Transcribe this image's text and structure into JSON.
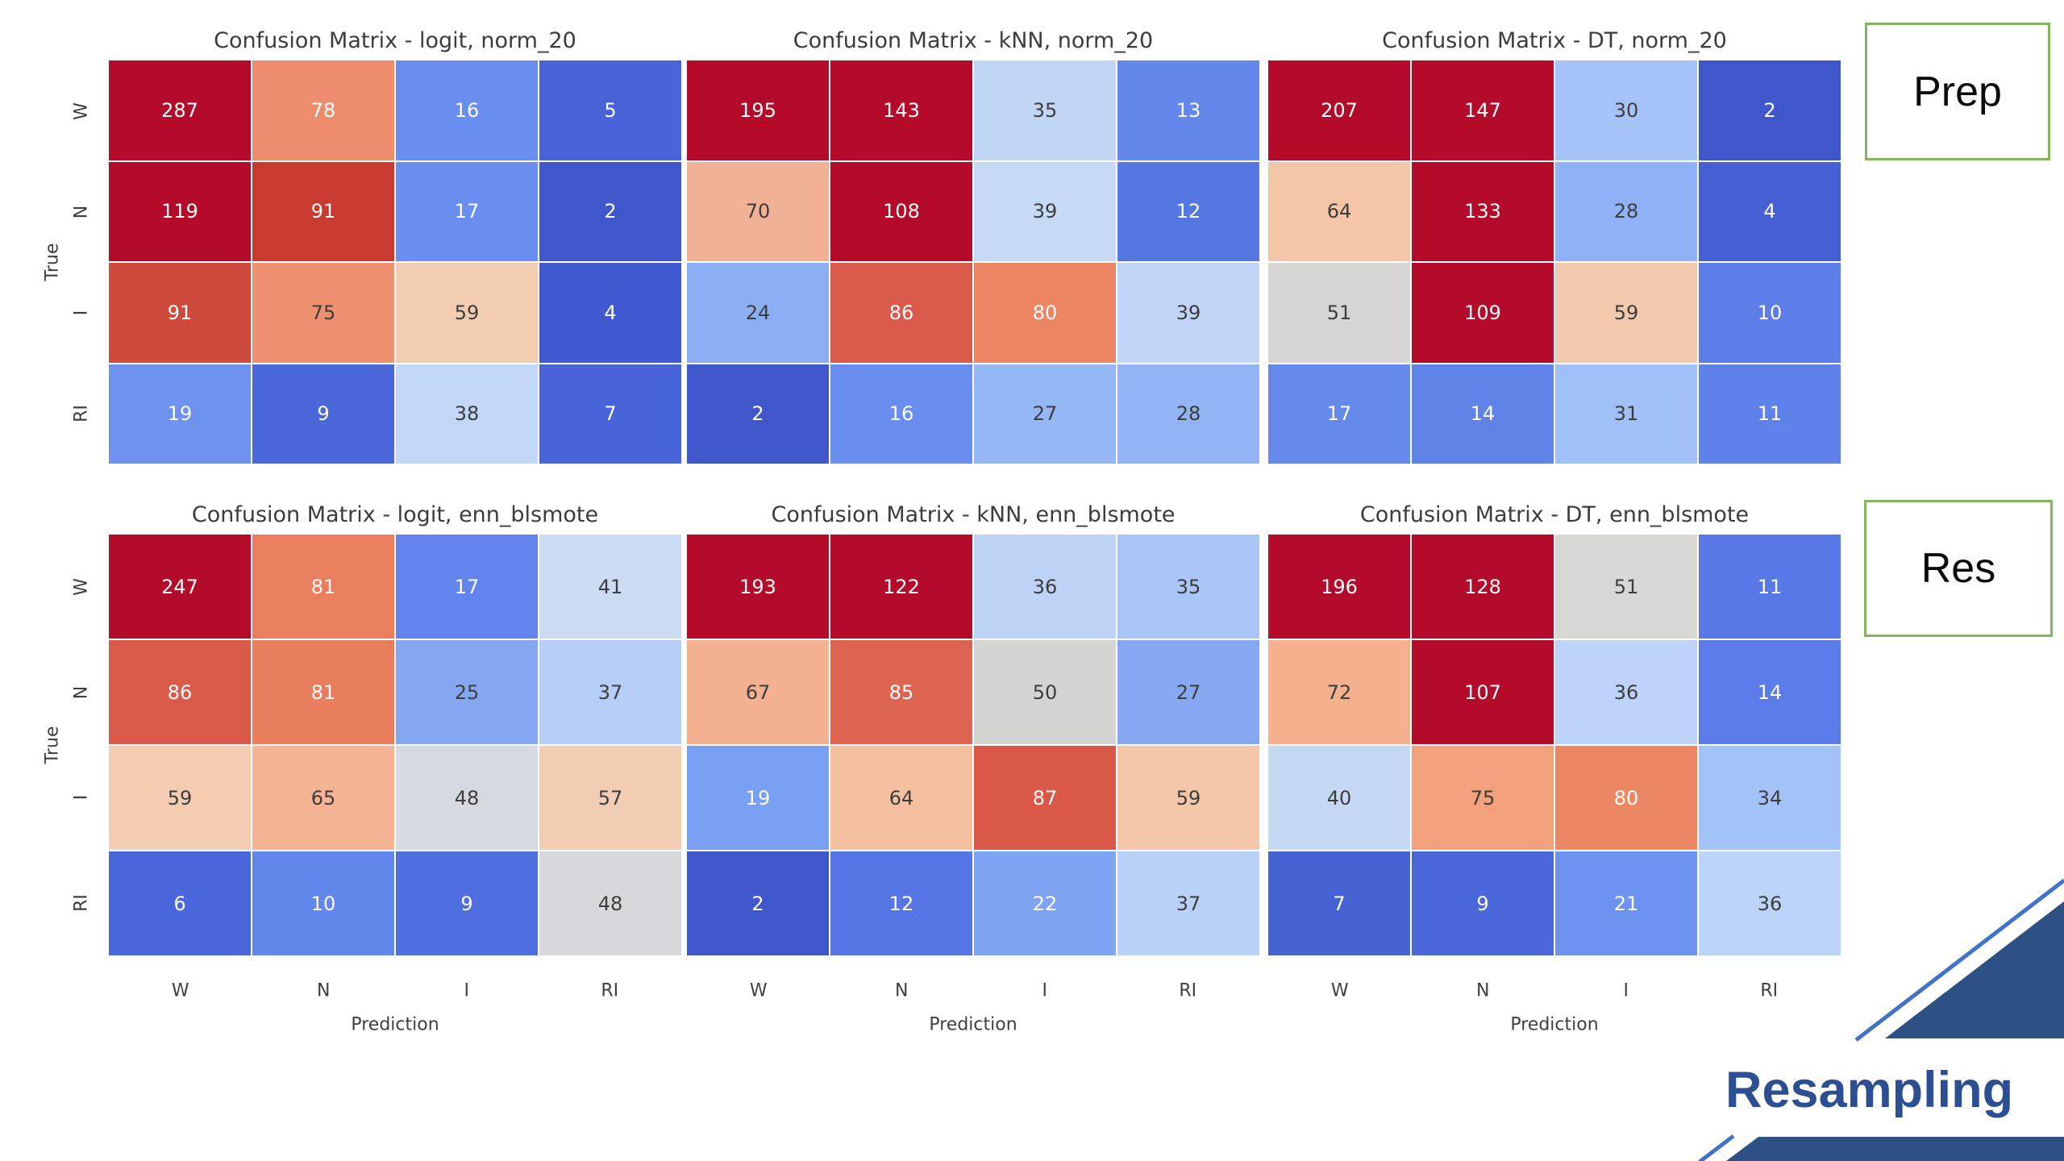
{
  "page": {
    "background": "#ffffff"
  },
  "axes": {
    "x_label": "Prediction",
    "y_label": "True",
    "x_ticks": [
      "W",
      "N",
      "I",
      "RI"
    ],
    "y_ticks": [
      "W",
      "N",
      "I",
      "RI"
    ]
  },
  "side": {
    "prep_label": "Prep",
    "res_label": "Res",
    "box_border_color": "#84b65c",
    "resampling_label": "Resampling",
    "resampling_color": "#2b4f92",
    "decoration_fill": "#2d5185",
    "decoration_line": "#4273c4"
  },
  "chart_data": [
    {
      "type": "heatmap",
      "title": "Confusion Matrix - logit, norm_20",
      "grid_row": 0,
      "grid_col": 0,
      "x_categories": [
        "W",
        "N",
        "I",
        "RI"
      ],
      "y_categories": [
        "W",
        "N",
        "I",
        "RI"
      ],
      "xlabel": "Prediction",
      "ylabel": "True",
      "values": [
        [
          287,
          78,
          16,
          5
        ],
        [
          119,
          91,
          17,
          2
        ],
        [
          91,
          75,
          59,
          4
        ],
        [
          19,
          9,
          38,
          7
        ]
      ],
      "cell_colors": [
        [
          "#b30b29",
          "#ed8d6d",
          "#6a8eef",
          "#4763d7"
        ],
        [
          "#b30b29",
          "#c93a30",
          "#6a8eef",
          "#4057cb"
        ],
        [
          "#cf4a3c",
          "#ef9070",
          "#f2cdb2",
          "#4159d0"
        ],
        [
          "#6e93ef",
          "#4a68d9",
          "#c3d8f7",
          "#4765d8"
        ]
      ],
      "text_colors": [
        [
          "#fdfdfd",
          "#fdfdfd",
          "#fdfdfd",
          "#fdfdfd"
        ],
        [
          "#fdfdfd",
          "#fdfdfd",
          "#fdfdfd",
          "#fdfdfd"
        ],
        [
          "#fdfdfd",
          "#3d3d3d",
          "#3d3d3d",
          "#fdfdfd"
        ],
        [
          "#fdfdfd",
          "#fdfdfd",
          "#3d3d3d",
          "#fdfdfd"
        ]
      ]
    },
    {
      "type": "heatmap",
      "title": "Confusion Matrix - kNN, norm_20",
      "grid_row": 0,
      "grid_col": 1,
      "x_categories": [
        "W",
        "N",
        "I",
        "RI"
      ],
      "y_categories": [
        "W",
        "N",
        "I",
        "RI"
      ],
      "xlabel": "Prediction",
      "ylabel": "True",
      "values": [
        [
          195,
          143,
          35,
          13
        ],
        [
          70,
          108,
          39,
          12
        ],
        [
          24,
          86,
          80,
          39
        ],
        [
          2,
          16,
          27,
          28
        ]
      ],
      "cell_colors": [
        [
          "#b30b29",
          "#b30b29",
          "#c2d6f6",
          "#6487ec"
        ],
        [
          "#f2b195",
          "#b30b29",
          "#c6d9f5",
          "#5577e2"
        ],
        [
          "#8caef2",
          "#d9594a",
          "#ec8564",
          "#c1d5f7"
        ],
        [
          "#4057cb",
          "#6a8eef",
          "#96b7f5",
          "#92b4f5"
        ]
      ],
      "text_colors": [
        [
          "#fdfdfd",
          "#fdfdfd",
          "#3d3d3d",
          "#fdfdfd"
        ],
        [
          "#3d3d3d",
          "#fdfdfd",
          "#3d3d3d",
          "#fdfdfd"
        ],
        [
          "#3d3d3d",
          "#fdfdfd",
          "#fdfdfd",
          "#3d3d3d"
        ],
        [
          "#fdfdfd",
          "#fdfdfd",
          "#3d3d3d",
          "#3d3d3d"
        ]
      ]
    },
    {
      "type": "heatmap",
      "title": "Confusion Matrix - DT, norm_20",
      "grid_row": 0,
      "grid_col": 2,
      "x_categories": [
        "W",
        "N",
        "I",
        "RI"
      ],
      "y_categories": [
        "W",
        "N",
        "I",
        "RI"
      ],
      "xlabel": "Prediction",
      "ylabel": "True",
      "values": [
        [
          207,
          147,
          30,
          2
        ],
        [
          64,
          133,
          28,
          4
        ],
        [
          51,
          109,
          59,
          10
        ],
        [
          17,
          14,
          31,
          11
        ]
      ],
      "cell_colors": [
        [
          "#b30b29",
          "#b30b29",
          "#a5c3f7",
          "#4057cb"
        ],
        [
          "#f5c5a7",
          "#b30b29",
          "#90b1f5",
          "#4560d5"
        ],
        [
          "#d8d6d4",
          "#b30b29",
          "#f1c9ad",
          "#5d7ee8"
        ],
        [
          "#6689ec",
          "#6083e9",
          "#a0c0f7",
          "#5f82ea"
        ]
      ],
      "text_colors": [
        [
          "#fdfdfd",
          "#fdfdfd",
          "#3d3d3d",
          "#fdfdfd"
        ],
        [
          "#3d3d3d",
          "#fdfdfd",
          "#3d3d3d",
          "#fdfdfd"
        ],
        [
          "#3d3d3d",
          "#fdfdfd",
          "#3d3d3d",
          "#fdfdfd"
        ],
        [
          "#fdfdfd",
          "#fdfdfd",
          "#3d3d3d",
          "#fdfdfd"
        ]
      ]
    },
    {
      "type": "heatmap",
      "title": "Confusion Matrix - logit, enn_blsmote",
      "grid_row": 1,
      "grid_col": 0,
      "x_categories": [
        "W",
        "N",
        "I",
        "RI"
      ],
      "y_categories": [
        "W",
        "N",
        "I",
        "RI"
      ],
      "xlabel": "Prediction",
      "ylabel": "True",
      "values": [
        [
          247,
          81,
          17,
          41
        ],
        [
          86,
          81,
          25,
          37
        ],
        [
          59,
          65,
          48,
          57
        ],
        [
          6,
          10,
          9,
          48
        ]
      ],
      "cell_colors": [
        [
          "#b30b29",
          "#eb7e5e",
          "#6284ec",
          "#ccdcf2"
        ],
        [
          "#d95a49",
          "#eb7d5f",
          "#85a7f1",
          "#b6cdf7"
        ],
        [
          "#f3ccb1",
          "#f4b392",
          "#d5dae0",
          "#f3cdb4"
        ],
        [
          "#4a67db",
          "#6186ec",
          "#4f6fe0",
          "#d5d8dc"
        ]
      ],
      "text_colors": [
        [
          "#fdfdfd",
          "#fdfdfd",
          "#fdfdfd",
          "#3d3d3d"
        ],
        [
          "#fdfdfd",
          "#fdfdfd",
          "#3d3d3d",
          "#3d3d3d"
        ],
        [
          "#3d3d3d",
          "#3d3d3d",
          "#3d3d3d",
          "#3d3d3d"
        ],
        [
          "#fdfdfd",
          "#fdfdfd",
          "#fdfdfd",
          "#3d3d3d"
        ]
      ]
    },
    {
      "type": "heatmap",
      "title": "Confusion Matrix - kNN, enn_blsmote",
      "grid_row": 1,
      "grid_col": 1,
      "x_categories": [
        "W",
        "N",
        "I",
        "RI"
      ],
      "y_categories": [
        "W",
        "N",
        "I",
        "RI"
      ],
      "xlabel": "Prediction",
      "ylabel": "True",
      "values": [
        [
          193,
          122,
          36,
          35
        ],
        [
          67,
          85,
          50,
          27
        ],
        [
          19,
          64,
          87,
          59
        ],
        [
          2,
          12,
          22,
          37
        ]
      ],
      "cell_colors": [
        [
          "#b30b29",
          "#b30b29",
          "#bed4f6",
          "#a9c6f6"
        ],
        [
          "#f3b192",
          "#dc6450",
          "#d4d4d2",
          "#85a8f0"
        ],
        [
          "#7aa0f3",
          "#f4c0a0",
          "#d95847",
          "#f4c7a8"
        ],
        [
          "#4057cb",
          "#5576e4",
          "#7fa4f4",
          "#bad2f8"
        ]
      ],
      "text_colors": [
        [
          "#fdfdfd",
          "#fdfdfd",
          "#3d3d3d",
          "#3d3d3d"
        ],
        [
          "#3d3d3d",
          "#fdfdfd",
          "#3d3d3d",
          "#3d3d3d"
        ],
        [
          "#fdfdfd",
          "#3d3d3d",
          "#fdfdfd",
          "#3d3d3d"
        ],
        [
          "#fdfdfd",
          "#fdfdfd",
          "#fdfdfd",
          "#3d3d3d"
        ]
      ]
    },
    {
      "type": "heatmap",
      "title": "Confusion Matrix - DT, enn_blsmote",
      "grid_row": 1,
      "grid_col": 2,
      "x_categories": [
        "W",
        "N",
        "I",
        "RI"
      ],
      "y_categories": [
        "W",
        "N",
        "I",
        "RI"
      ],
      "xlabel": "Prediction",
      "ylabel": "True",
      "values": [
        [
          196,
          128,
          51,
          11
        ],
        [
          72,
          107,
          36,
          14
        ],
        [
          40,
          75,
          80,
          34
        ],
        [
          7,
          9,
          21,
          36
        ]
      ],
      "cell_colors": [
        [
          "#b30b29",
          "#b30b29",
          "#d9d7d3",
          "#5878e8"
        ],
        [
          "#f5b18e",
          "#b30b29",
          "#bdd4f8",
          "#5b7ce8"
        ],
        [
          "#c6d9f4",
          "#f3a17c",
          "#ec8764",
          "#a2c2f8"
        ],
        [
          "#4663d4",
          "#4a68da",
          "#6d92f0",
          "#bcd4f8"
        ]
      ],
      "text_colors": [
        [
          "#fdfdfd",
          "#fdfdfd",
          "#3d3d3d",
          "#fdfdfd"
        ],
        [
          "#3d3d3d",
          "#fdfdfd",
          "#3d3d3d",
          "#fdfdfd"
        ],
        [
          "#3d3d3d",
          "#3d3d3d",
          "#fdfdfd",
          "#3d3d3d"
        ],
        [
          "#fdfdfd",
          "#fdfdfd",
          "#fdfdfd",
          "#3d3d3d"
        ]
      ]
    }
  ]
}
